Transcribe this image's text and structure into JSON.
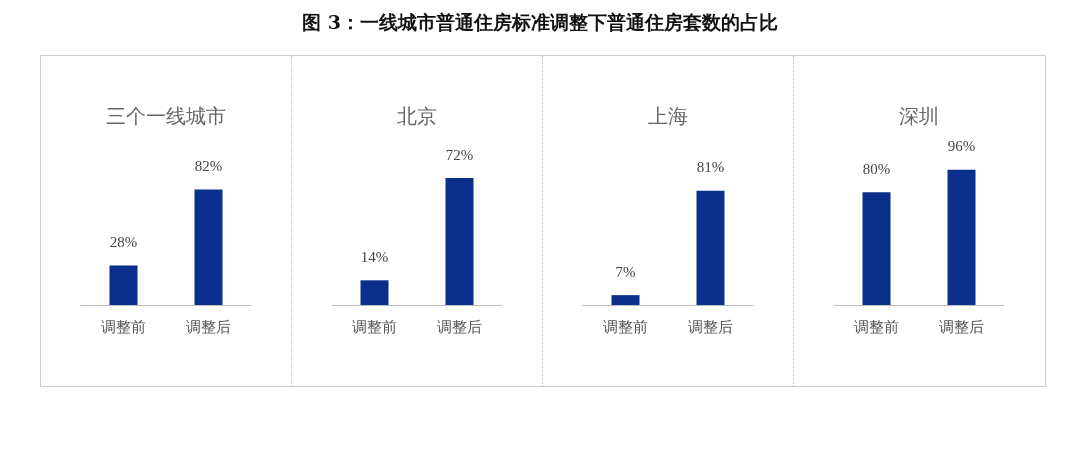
{
  "chart_data": [
    {
      "type": "other",
      "title": "图 3：一线城市普通住房标准调整下普通住房套数的占比"
    },
    {
      "type": "bar",
      "title": "三个一线城市",
      "categories": [
        "调整前",
        "调整后"
      ],
      "values": [
        28,
        82
      ],
      "value_labels": [
        "28%",
        "82%"
      ],
      "color": "#0a2f8c"
    },
    {
      "type": "bar",
      "title": "北京",
      "categories": [
        "调整前",
        "调整后"
      ],
      "values": [
        14,
        72
      ],
      "value_labels": [
        "14%",
        "72%"
      ],
      "color": "#0a2f8c"
    },
    {
      "type": "bar",
      "title": "上海",
      "categories": [
        "调整前",
        "调整后"
      ],
      "values": [
        7,
        81
      ],
      "value_labels": [
        "7%",
        "81%"
      ],
      "color": "#0a2f8c"
    },
    {
      "type": "bar",
      "title": "深圳",
      "categories": [
        "调整前",
        "调整后"
      ],
      "values": [
        80,
        96
      ],
      "value_labels": [
        "80%",
        "96%"
      ],
      "color": "#0a2f8c"
    }
  ]
}
